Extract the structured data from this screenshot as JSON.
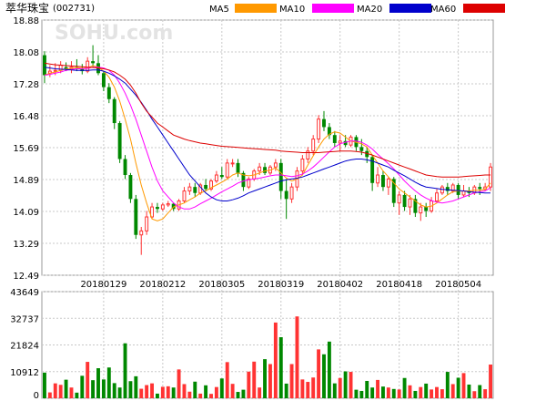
{
  "title": "萃华珠宝",
  "code": "(002731)",
  "watermark": "SOHU.com",
  "colors": {
    "up": "#ff3333",
    "down": "#008800",
    "grid": "#c8c8c8"
  },
  "chart_data": {
    "type": "candlestick",
    "price_ticks": [
      "18.88",
      "18.08",
      "17.28",
      "16.48",
      "15.69",
      "14.89",
      "14.09",
      "13.29",
      "12.49"
    ],
    "volume_ticks": [
      "43649",
      "32737",
      "21824",
      "10912",
      "0"
    ],
    "date_ticks": [
      "20180129",
      "20180212",
      "20180305",
      "20180319",
      "20180402",
      "20180418",
      "20180504"
    ],
    "date_tick_index": [
      11,
      22,
      33,
      44,
      55,
      66,
      77
    ],
    "ylim": [
      12.49,
      18.88
    ],
    "vlim": [
      0,
      43649
    ],
    "legend": [
      {
        "name": "MA5",
        "color": "#ff9900"
      },
      {
        "name": "MA10",
        "color": "#ff00ff"
      },
      {
        "name": "MA20",
        "color": "#0000cc"
      },
      {
        "name": "MA60",
        "color": "#dd0000"
      }
    ],
    "candles": [
      [
        18.0,
        18.1,
        17.3,
        17.5
      ],
      [
        17.55,
        17.75,
        17.45,
        17.6
      ],
      [
        17.6,
        17.8,
        17.5,
        17.62
      ],
      [
        17.62,
        17.85,
        17.55,
        17.75
      ],
      [
        17.7,
        17.82,
        17.6,
        17.65
      ],
      [
        17.65,
        17.85,
        17.55,
        17.7
      ],
      [
        17.7,
        17.9,
        17.6,
        17.68
      ],
      [
        17.68,
        17.78,
        17.52,
        17.6
      ],
      [
        17.6,
        17.95,
        17.55,
        17.85
      ],
      [
        17.85,
        18.25,
        17.7,
        17.8
      ],
      [
        17.8,
        18.0,
        17.5,
        17.55
      ],
      [
        17.55,
        17.6,
        17.1,
        17.2
      ],
      [
        17.2,
        17.3,
        16.8,
        16.9
      ],
      [
        16.9,
        16.95,
        16.15,
        16.3
      ],
      [
        16.3,
        16.35,
        15.3,
        15.4
      ],
      [
        15.4,
        15.5,
        14.9,
        15.0
      ],
      [
        15.0,
        15.05,
        14.3,
        14.4
      ],
      [
        14.4,
        14.5,
        13.4,
        13.5
      ],
      [
        13.5,
        13.7,
        13.0,
        13.6
      ],
      [
        13.6,
        14.1,
        13.5,
        13.95
      ],
      [
        13.95,
        14.3,
        13.9,
        14.2
      ],
      [
        14.2,
        14.3,
        14.05,
        14.15
      ],
      [
        14.15,
        14.3,
        14.1,
        14.25
      ],
      [
        14.25,
        14.35,
        14.2,
        14.28
      ],
      [
        14.28,
        14.3,
        14.1,
        14.15
      ],
      [
        14.15,
        14.4,
        14.1,
        14.35
      ],
      [
        14.35,
        14.7,
        14.3,
        14.6
      ],
      [
        14.6,
        14.8,
        14.5,
        14.7
      ],
      [
        14.7,
        14.8,
        14.45,
        14.55
      ],
      [
        14.55,
        14.8,
        14.5,
        14.75
      ],
      [
        14.75,
        14.9,
        14.6,
        14.65
      ],
      [
        14.65,
        14.9,
        14.6,
        14.85
      ],
      [
        14.85,
        15.1,
        14.8,
        15.0
      ],
      [
        15.0,
        15.2,
        14.9,
        14.95
      ],
      [
        14.95,
        15.4,
        14.9,
        15.3
      ],
      [
        15.3,
        15.4,
        15.2,
        15.3
      ],
      [
        15.3,
        15.4,
        14.95,
        15.05
      ],
      [
        15.05,
        15.1,
        14.6,
        14.7
      ],
      [
        14.7,
        14.95,
        14.65,
        14.9
      ],
      [
        14.9,
        15.15,
        14.85,
        15.1
      ],
      [
        15.1,
        15.3,
        15.0,
        15.2
      ],
      [
        15.2,
        15.3,
        15.0,
        15.05
      ],
      [
        15.05,
        15.25,
        15.0,
        15.2
      ],
      [
        15.2,
        15.4,
        15.1,
        15.3
      ],
      [
        15.3,
        15.4,
        14.4,
        14.6
      ],
      [
        14.6,
        14.9,
        13.9,
        14.4
      ],
      [
        14.4,
        14.8,
        14.3,
        14.7
      ],
      [
        14.7,
        15.2,
        14.6,
        15.1
      ],
      [
        15.1,
        15.5,
        15.0,
        15.4
      ],
      [
        15.4,
        15.7,
        15.3,
        15.6
      ],
      [
        15.6,
        16.0,
        15.5,
        15.9
      ],
      [
        15.9,
        16.5,
        15.8,
        16.4
      ],
      [
        16.4,
        16.6,
        16.1,
        16.2
      ],
      [
        16.2,
        16.3,
        15.9,
        16.0
      ],
      [
        16.0,
        16.1,
        15.7,
        15.8
      ],
      [
        15.8,
        16.0,
        15.6,
        15.85
      ],
      [
        15.85,
        16.0,
        15.7,
        15.75
      ],
      [
        15.75,
        16.0,
        15.7,
        15.95
      ],
      [
        15.95,
        16.0,
        15.6,
        15.7
      ],
      [
        15.7,
        15.9,
        15.5,
        15.6
      ],
      [
        15.6,
        15.7,
        15.3,
        15.45
      ],
      [
        15.45,
        15.5,
        14.6,
        14.8
      ],
      [
        14.8,
        15.2,
        14.7,
        15.0
      ],
      [
        15.0,
        15.1,
        14.6,
        14.7
      ],
      [
        14.7,
        14.95,
        14.5,
        14.9
      ],
      [
        14.9,
        14.95,
        14.2,
        14.3
      ],
      [
        14.3,
        14.6,
        14.0,
        14.5
      ],
      [
        14.5,
        14.6,
        14.1,
        14.2
      ],
      [
        14.2,
        14.5,
        14.0,
        14.4
      ],
      [
        14.4,
        14.5,
        13.95,
        14.05
      ],
      [
        14.05,
        14.3,
        13.85,
        14.2
      ],
      [
        14.2,
        14.3,
        13.95,
        14.1
      ],
      [
        14.1,
        14.45,
        14.05,
        14.35
      ],
      [
        14.35,
        14.65,
        14.3,
        14.55
      ],
      [
        14.55,
        14.75,
        14.5,
        14.7
      ],
      [
        14.7,
        14.8,
        14.5,
        14.6
      ],
      [
        14.6,
        14.8,
        14.55,
        14.75
      ],
      [
        14.75,
        14.8,
        14.4,
        14.5
      ],
      [
        14.5,
        14.75,
        14.45,
        14.6
      ],
      [
        14.6,
        14.7,
        14.45,
        14.55
      ],
      [
        14.55,
        14.75,
        14.5,
        14.7
      ],
      [
        14.7,
        14.8,
        14.5,
        14.65
      ],
      [
        14.65,
        14.8,
        14.6,
        14.7
      ],
      [
        14.7,
        15.3,
        14.6,
        15.2
      ]
    ],
    "volume": [
      10500,
      2400,
      6100,
      5500,
      7600,
      4400,
      2300,
      9200,
      14900,
      7400,
      12300,
      7700,
      12600,
      6200,
      4400,
      22500,
      7000,
      9000,
      3900,
      5400,
      6100,
      1900,
      4700,
      4900,
      4400,
      11800,
      5800,
      2700,
      6800,
      1900,
      5300,
      1800,
      4600,
      8100,
      14800,
      5900,
      2600,
      3500,
      10900,
      15000,
      4400,
      16000,
      14000,
      31000,
      25000,
      6000,
      14000,
      33500,
      7700,
      6700,
      8500,
      20000,
      18000,
      23200,
      6100,
      8300,
      11000,
      10800,
      3500,
      3000,
      7100,
      4400,
      7500,
      4800,
      4400,
      3800,
      3600,
      8300,
      5300,
      3000,
      4600,
      6000,
      3600,
      4600,
      3700,
      10800,
      5800,
      8400,
      10300,
      5600,
      2900,
      5400,
      3700,
      13800
    ],
    "ma5": [
      17.5,
      17.55,
      17.58,
      17.62,
      17.66,
      17.67,
      17.69,
      17.67,
      17.68,
      17.74,
      17.7,
      17.6,
      17.45,
      17.2,
      16.85,
      16.4,
      15.9,
      15.3,
      14.75,
      14.3,
      13.9,
      13.85,
      13.9,
      14.05,
      14.2,
      14.25,
      14.3,
      14.38,
      14.45,
      14.55,
      14.6,
      14.68,
      14.75,
      14.82,
      14.9,
      15.0,
      15.05,
      15.0,
      14.98,
      15.0,
      15.05,
      15.1,
      15.12,
      15.18,
      15.05,
      14.92,
      14.85,
      14.9,
      15.0,
      15.25,
      15.48,
      15.7,
      15.9,
      16.02,
      16.08,
      16.05,
      15.95,
      15.85,
      15.82,
      15.78,
      15.7,
      15.5,
      15.3,
      15.1,
      14.95,
      14.8,
      14.65,
      14.55,
      14.45,
      14.35,
      14.25,
      14.2,
      14.22,
      14.3,
      14.4,
      14.5,
      14.58,
      14.6,
      14.6,
      14.6,
      14.62,
      14.62,
      14.64,
      14.8
    ],
    "ma10": [
      17.5,
      17.52,
      17.55,
      17.58,
      17.62,
      17.64,
      17.66,
      17.66,
      17.67,
      17.7,
      17.7,
      17.68,
      17.62,
      17.5,
      17.3,
      17.05,
      16.75,
      16.4,
      16.0,
      15.6,
      15.2,
      14.85,
      14.6,
      14.45,
      14.3,
      14.2,
      14.15,
      14.15,
      14.2,
      14.28,
      14.35,
      14.42,
      14.5,
      14.58,
      14.65,
      14.72,
      14.8,
      14.85,
      14.88,
      14.9,
      14.92,
      14.95,
      14.98,
      15.0,
      15.0,
      14.98,
      14.96,
      14.98,
      15.02,
      15.1,
      15.2,
      15.32,
      15.45,
      15.58,
      15.7,
      15.78,
      15.82,
      15.85,
      15.85,
      15.82,
      15.75,
      15.65,
      15.52,
      15.4,
      15.28,
      15.15,
      15.0,
      14.85,
      14.72,
      14.6,
      14.5,
      14.42,
      14.36,
      14.32,
      14.3,
      14.32,
      14.35,
      14.4,
      14.45,
      14.5,
      14.55,
      14.58,
      14.6,
      14.68
    ],
    "ma20": [
      17.7,
      17.68,
      17.66,
      17.65,
      17.64,
      17.63,
      17.62,
      17.62,
      17.62,
      17.63,
      17.63,
      17.6,
      17.55,
      17.48,
      17.4,
      17.3,
      17.15,
      17.0,
      16.82,
      16.62,
      16.4,
      16.2,
      16.0,
      15.8,
      15.6,
      15.4,
      15.2,
      15.0,
      14.85,
      14.7,
      14.55,
      14.45,
      14.38,
      14.35,
      14.35,
      14.38,
      14.42,
      14.48,
      14.55,
      14.6,
      14.65,
      14.7,
      14.75,
      14.8,
      14.85,
      14.88,
      14.9,
      14.92,
      14.95,
      15.0,
      15.05,
      15.1,
      15.15,
      15.2,
      15.25,
      15.3,
      15.35,
      15.38,
      15.4,
      15.4,
      15.38,
      15.35,
      15.3,
      15.25,
      15.2,
      15.12,
      15.05,
      14.98,
      14.9,
      14.82,
      14.75,
      14.7,
      14.68,
      14.66,
      14.64,
      14.63,
      14.62,
      14.61,
      14.6,
      14.58,
      14.57,
      14.56,
      14.55,
      14.55
    ],
    "ma60": [
      17.8,
      17.78,
      17.76,
      17.75,
      17.74,
      17.73,
      17.72,
      17.71,
      17.7,
      17.69,
      17.68,
      17.66,
      17.63,
      17.58,
      17.5,
      17.4,
      17.25,
      17.05,
      16.8,
      16.6,
      16.45,
      16.3,
      16.2,
      16.1,
      16.0,
      15.95,
      15.9,
      15.86,
      15.83,
      15.8,
      15.78,
      15.76,
      15.74,
      15.72,
      15.71,
      15.7,
      15.69,
      15.68,
      15.67,
      15.66,
      15.65,
      15.64,
      15.63,
      15.62,
      15.6,
      15.59,
      15.58,
      15.57,
      15.56,
      15.56,
      15.56,
      15.56,
      15.57,
      15.58,
      15.59,
      15.6,
      15.6,
      15.6,
      15.59,
      15.57,
      15.54,
      15.5,
      15.45,
      15.4,
      15.35,
      15.3,
      15.25,
      15.2,
      15.15,
      15.1,
      15.05,
      15.0,
      14.98,
      14.96,
      14.95,
      14.95,
      14.95,
      14.95,
      14.96,
      14.97,
      14.98,
      14.99,
      15.0,
      15.0
    ]
  }
}
